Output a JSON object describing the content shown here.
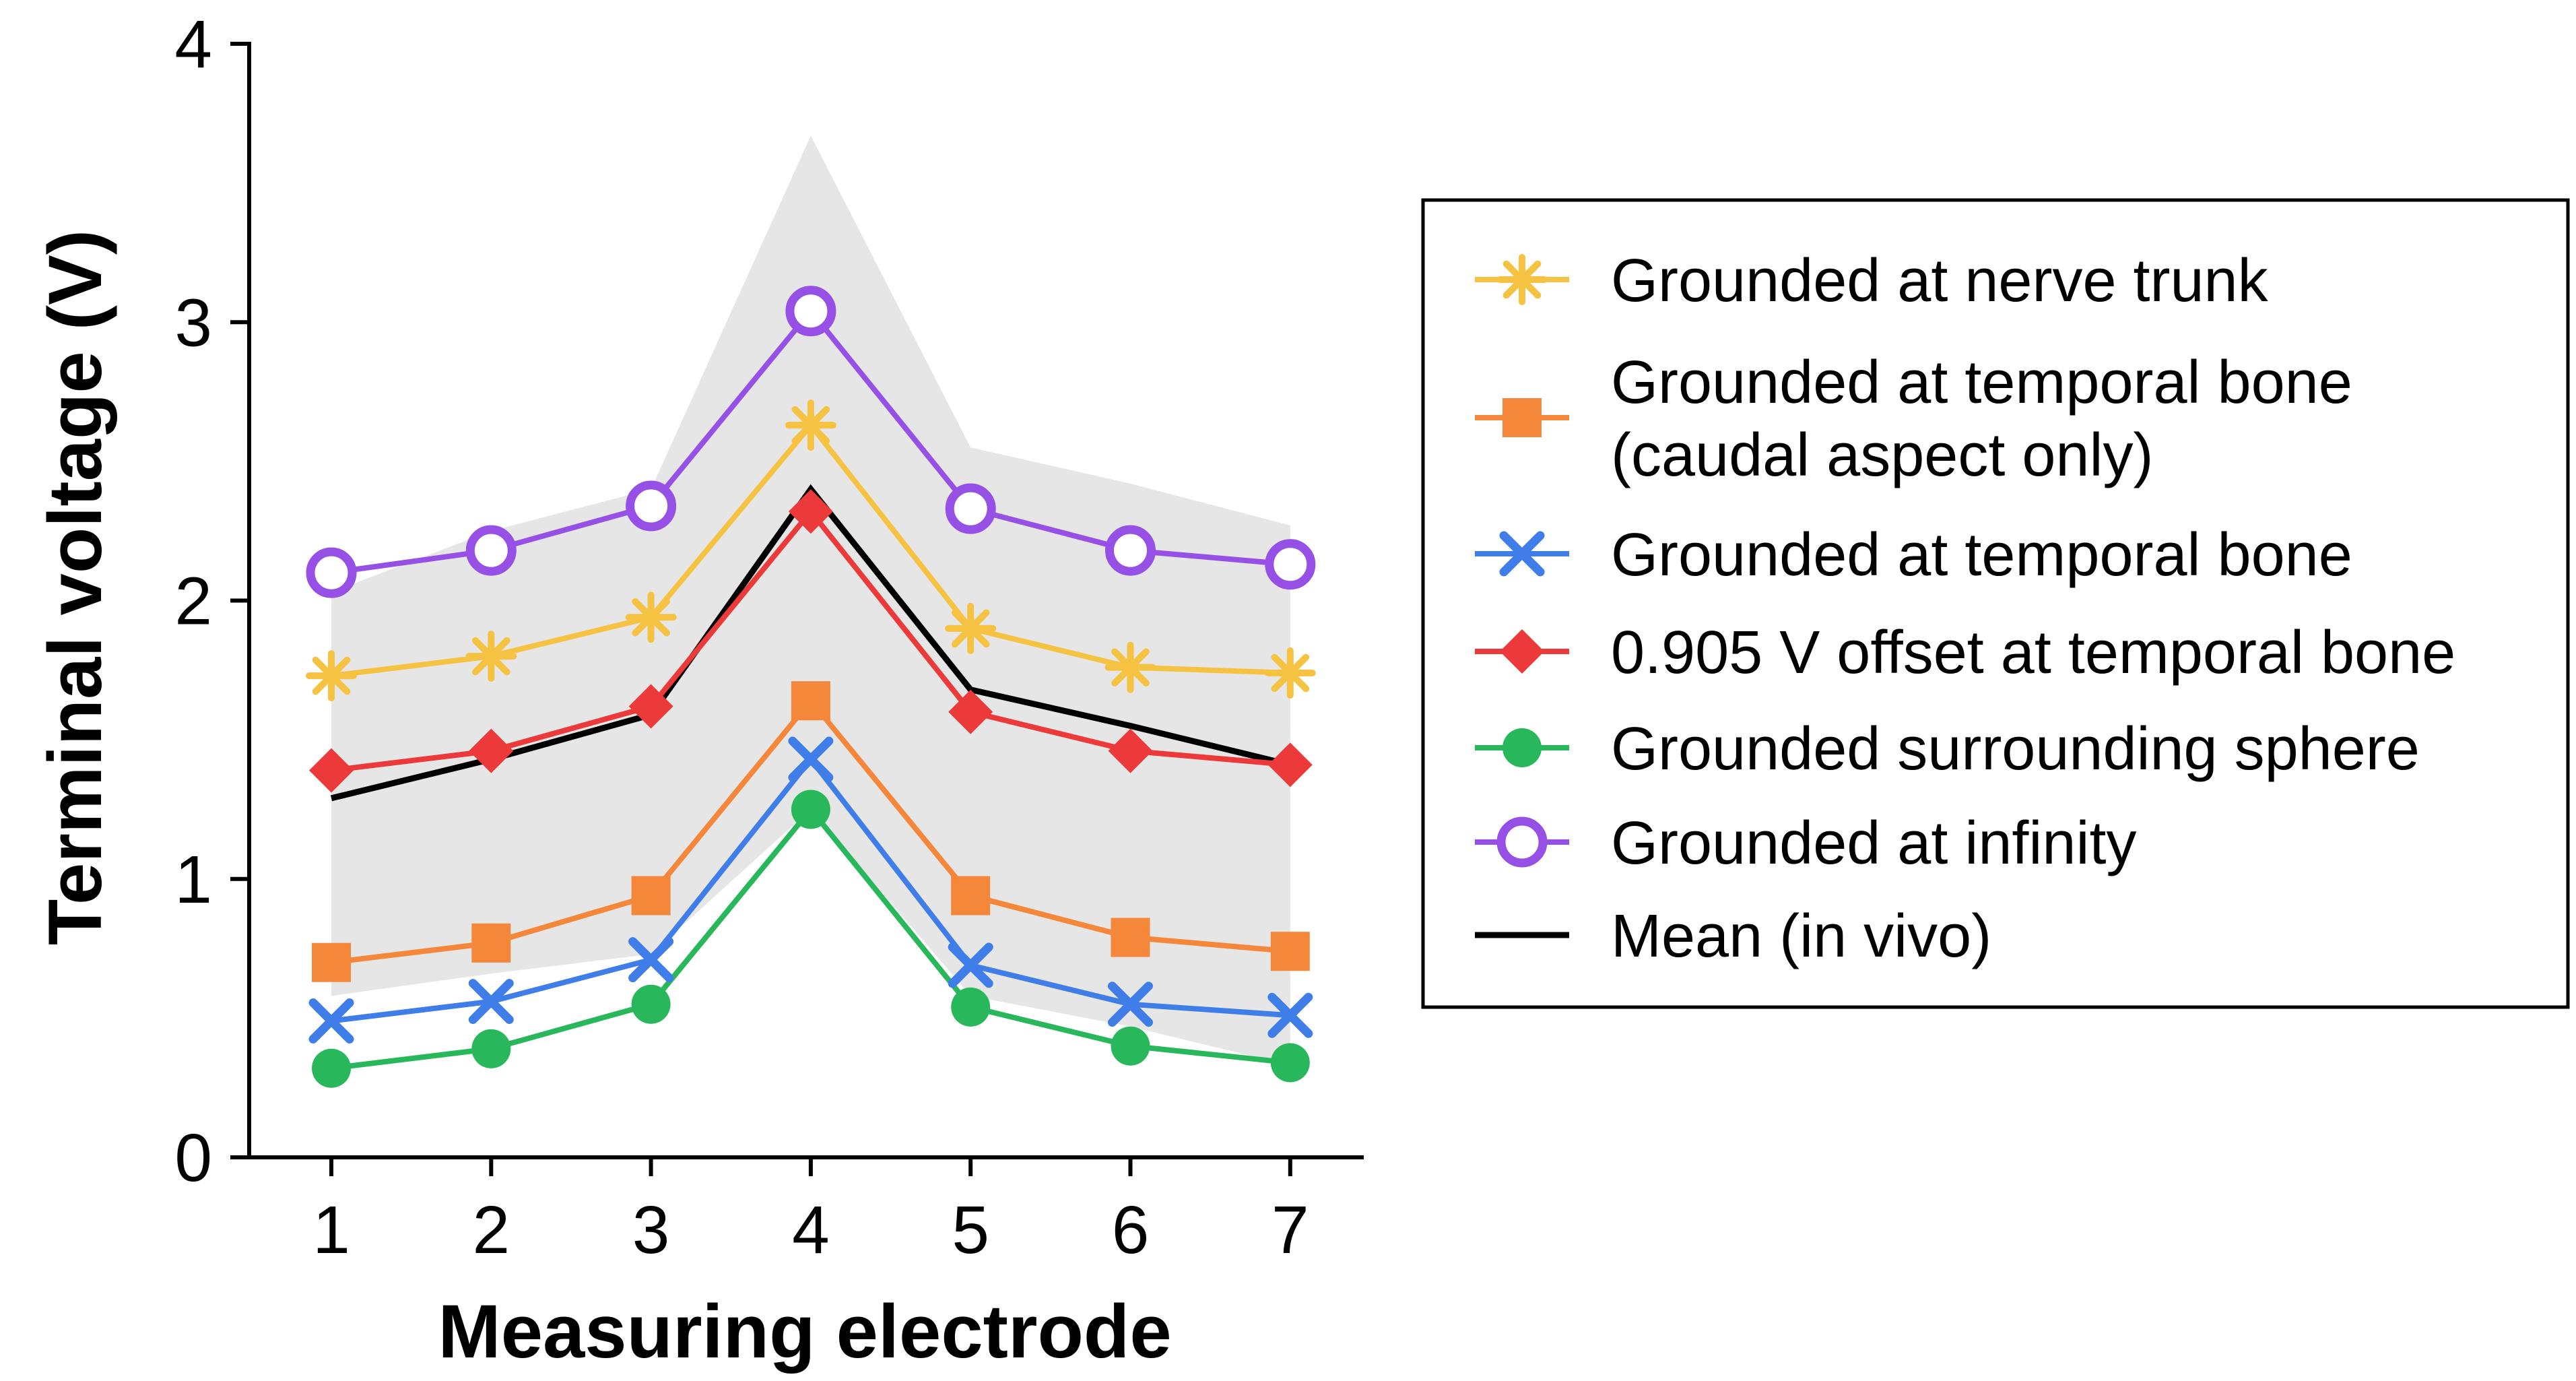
{
  "chart_data": {
    "type": "line",
    "xlabel": "Measuring electrode",
    "ylabel": "Terminal voltage (V)",
    "x": [
      1,
      2,
      3,
      4,
      5,
      6,
      7
    ],
    "xticks": [
      "1",
      "2",
      "3",
      "4",
      "5",
      "6",
      "7"
    ],
    "ylim": [
      0,
      4
    ],
    "yticks": [
      "0",
      "1",
      "2",
      "3",
      "4"
    ],
    "grid": false,
    "legend_position": "right",
    "band": {
      "color": "#e6e6e6",
      "upper": [
        2.03,
        2.25,
        2.4,
        3.67,
        2.55,
        2.42,
        2.27
      ],
      "lower": [
        0.58,
        0.66,
        0.73,
        1.25,
        0.58,
        0.47,
        0.33
      ]
    },
    "series": [
      {
        "name": "Grounded at nerve trunk",
        "color": "#f5c242",
        "marker": "asterisk",
        "values": [
          1.73,
          1.8,
          1.94,
          2.63,
          1.9,
          1.76,
          1.74
        ]
      },
      {
        "name": "Grounded at temporal bone (caudal aspect only)",
        "label_lines": [
          "Grounded at temporal bone",
          "(caudal aspect only)"
        ],
        "color": "#f5873a",
        "marker": "square",
        "values": [
          0.7,
          0.77,
          0.94,
          1.64,
          0.94,
          0.79,
          0.74
        ]
      },
      {
        "name": "Grounded at temporal bone",
        "color": "#3f7ee8",
        "marker": "x",
        "values": [
          0.49,
          0.56,
          0.71,
          1.43,
          0.69,
          0.55,
          0.51
        ]
      },
      {
        "name": "0.905 V offset at temporal bone",
        "color": "#ec3a3a",
        "marker": "diamond",
        "values": [
          1.39,
          1.46,
          1.62,
          2.32,
          1.6,
          1.46,
          1.41
        ]
      },
      {
        "name": "Grounded surrounding sphere",
        "color": "#28b85b",
        "marker": "circle",
        "values": [
          0.32,
          0.39,
          0.55,
          1.25,
          0.54,
          0.4,
          0.34
        ]
      },
      {
        "name": "Grounded at infinity",
        "color": "#9650e6",
        "marker": "open-circle",
        "values": [
          2.1,
          2.18,
          2.34,
          3.04,
          2.33,
          2.18,
          2.13
        ]
      },
      {
        "name": "Mean (in vivo)",
        "color": "#000000",
        "marker": "none",
        "values": [
          1.29,
          1.43,
          1.59,
          2.4,
          1.68,
          1.55,
          1.41
        ]
      }
    ]
  }
}
